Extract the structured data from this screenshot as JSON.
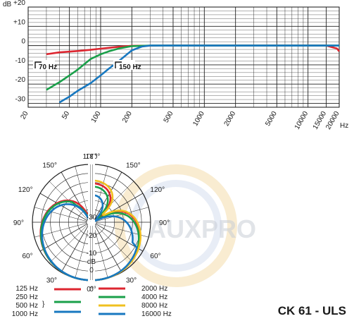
{
  "title": "CK 61 - ULS",
  "watermark": "AUXPRO",
  "frequency_response": {
    "type": "line",
    "axis_unit_left": "dB",
    "y_ticks": [
      "+20",
      "+10",
      "0",
      "-10",
      "-20",
      "-30"
    ],
    "x_unit": "Hz",
    "x_tick_labels": [
      "20",
      "50",
      "100",
      "200",
      "500",
      "1000",
      "2000",
      "5000",
      "10000",
      "15000",
      "20000"
    ],
    "ylim": [
      -32,
      20
    ],
    "xlim": [
      20,
      20000
    ],
    "x_scale": "log",
    "grid": true,
    "annotations": [
      "70 Hz",
      "150 Hz"
    ],
    "colors": {
      "flat": "#dd2630",
      "rolloff_70": "#1aa04a",
      "rolloff_150": "#1878c0"
    },
    "series": [
      {
        "color": "#dd2630",
        "x": [
          30,
          40,
          60,
          80,
          100,
          150,
          200,
          500,
          1000,
          5000,
          15000,
          19000,
          20000
        ],
        "y": [
          -4.5,
          -3.5,
          -2.8,
          -2.2,
          -1.6,
          -0.6,
          -0.1,
          0,
          0,
          0,
          0,
          -1.5,
          -3
        ]
      },
      {
        "color": "#1aa04a",
        "x": [
          30,
          40,
          50,
          60,
          70,
          80,
          100,
          120,
          150,
          200,
          300,
          20000
        ],
        "y": [
          -23,
          -19,
          -15.5,
          -12.5,
          -9.5,
          -7,
          -4.5,
          -3,
          -1.5,
          -0.3,
          0,
          0
        ]
      },
      {
        "color": "#1878c0",
        "x": [
          40,
          50,
          60,
          80,
          100,
          120,
          150,
          180,
          200,
          250,
          300,
          20000
        ],
        "y": [
          -29.5,
          -26.5,
          -23.5,
          -19.5,
          -15.5,
          -12,
          -8,
          -4.5,
          -2.5,
          -0.5,
          0,
          0
        ]
      }
    ]
  },
  "polar": {
    "type": "polar",
    "angle_labels": [
      "180°",
      "150°",
      "120°",
      "90°",
      "60°",
      "30°",
      "0°"
    ],
    "angle_labels_right": [
      "180°",
      "150°",
      "120°",
      "90°",
      "60°",
      "30°",
      "0°"
    ],
    "ring_labels": [
      "-30",
      "-20",
      "-10",
      "dB",
      "0"
    ],
    "rlim": [
      -30,
      0
    ]
  },
  "legend": {
    "left": [
      {
        "label": "125 Hz",
        "color": "#dd2630"
      },
      {
        "label": "250 Hz",
        "color": "#dd2630"
      },
      {
        "label": "500 Hz",
        "color": "#1aa04a"
      },
      {
        "label": "1000 Hz",
        "color": "#1878c0"
      }
    ],
    "right": [
      {
        "label": "2000 Hz",
        "color": "#dd2630"
      },
      {
        "label": "4000 Hz",
        "color": "#1aa04a"
      },
      {
        "label": "8000 Hz",
        "color": "#f0c020"
      },
      {
        "label": "16000 Hz",
        "color": "#1878c0"
      }
    ]
  }
}
